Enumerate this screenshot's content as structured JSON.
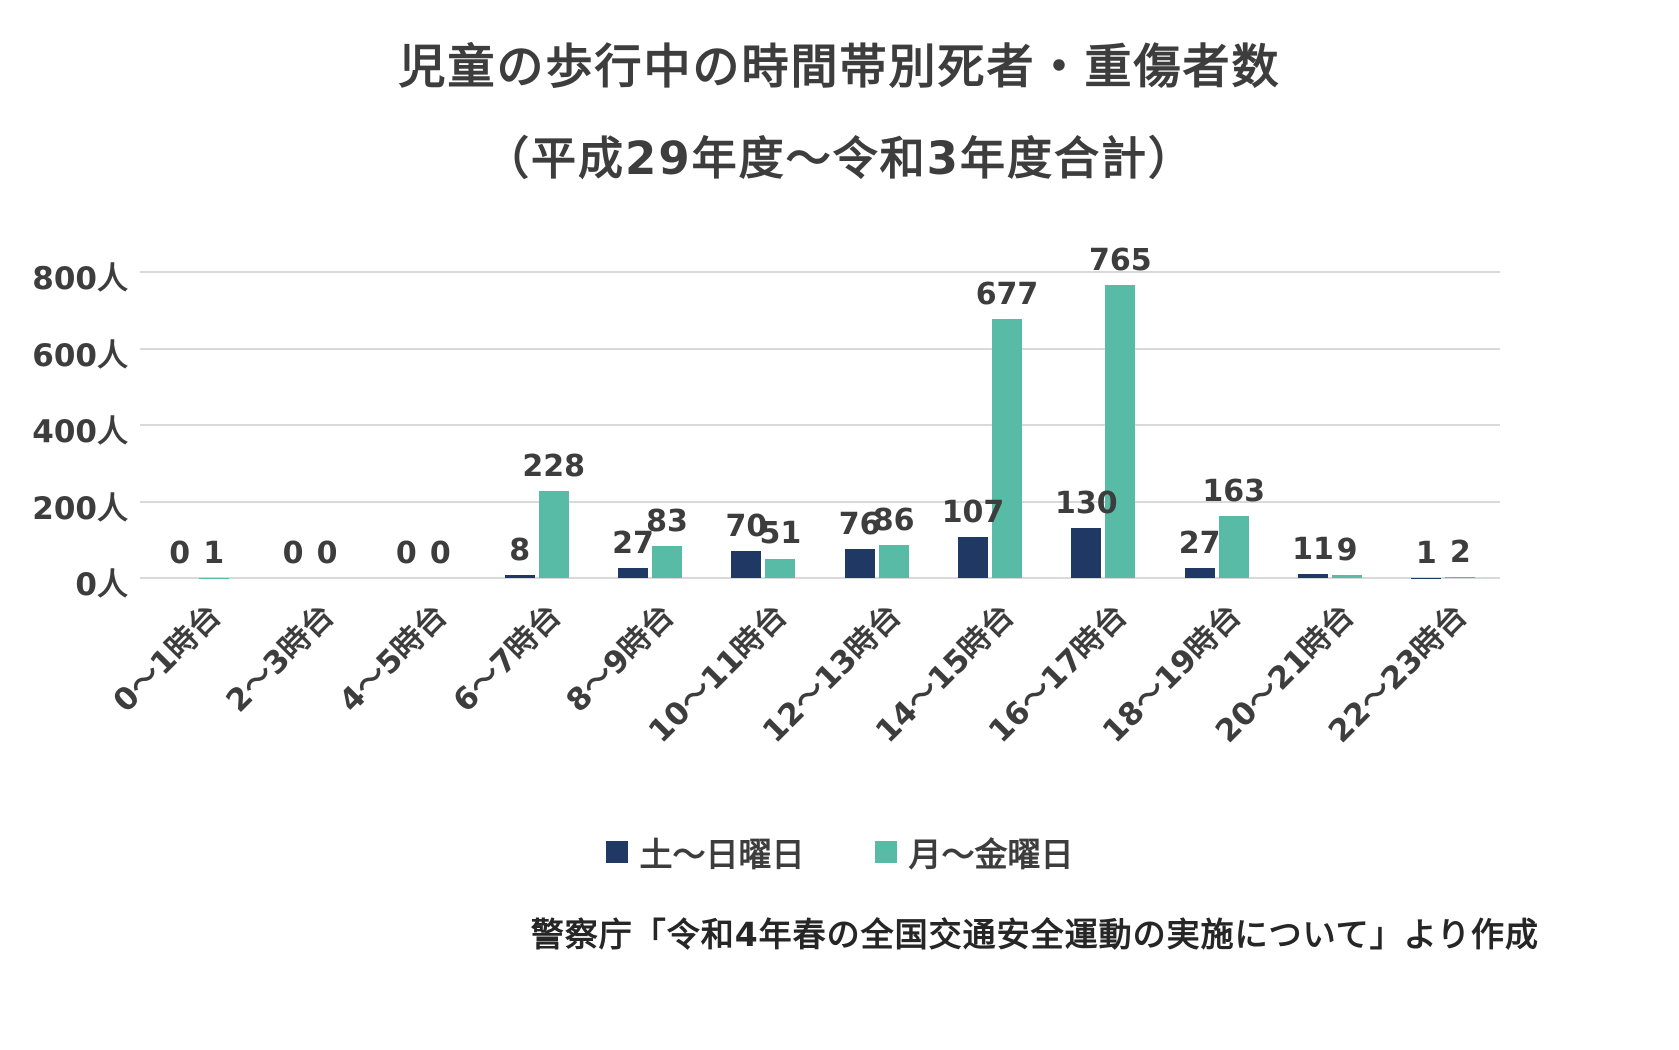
{
  "title": {
    "line1": "児童の歩行中の時間帯別死者・重傷者数",
    "line2": "（平成29年度～令和3年度合計）"
  },
  "chart_data": {
    "type": "bar",
    "categories": [
      "0～1時台",
      "2～3時台",
      "4～5時台",
      "6～7時台",
      "8～9時台",
      "10～11時台",
      "12～13時台",
      "14～15時台",
      "16～17時台",
      "18～19時台",
      "20～21時台",
      "22～23時台"
    ],
    "series": [
      {
        "name": "土～日曜日",
        "color": "#1f3864",
        "values": [
          0,
          0,
          0,
          8,
          27,
          70,
          76,
          107,
          130,
          27,
          11,
          1
        ]
      },
      {
        "name": "月～金曜日",
        "color": "#57bba6",
        "values": [
          1,
          0,
          0,
          228,
          83,
          51,
          86,
          677,
          765,
          163,
          9,
          2
        ]
      }
    ],
    "y_ticks": [
      {
        "value": 0,
        "label": "0人"
      },
      {
        "value": 200,
        "label": "200人"
      },
      {
        "value": 400,
        "label": "400人"
      },
      {
        "value": 600,
        "label": "600人"
      },
      {
        "value": 800,
        "label": "800人"
      }
    ],
    "ylim": [
      0,
      800
    ],
    "grid": true,
    "legend_position": "bottom"
  },
  "source_note": "警察庁「令和4年春の全国交通安全運動の実施について」より作成",
  "colors": {
    "saturday_sunday": "#1f3864",
    "monday_friday": "#57bba6",
    "axis_text": "#3d3d3d",
    "gridline": "#d9d9d9"
  }
}
